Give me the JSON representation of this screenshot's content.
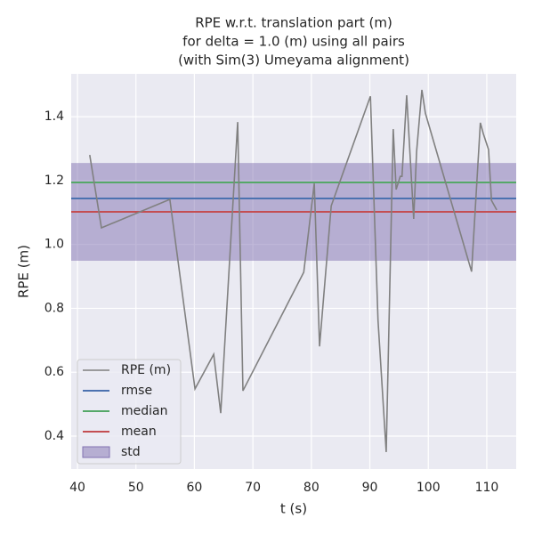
{
  "chart_data": {
    "type": "line",
    "title": [
      "RPE w.r.t. translation part (m)",
      "for delta = 1.0 (m) using all pairs",
      "(with Sim(3) Umeyama alignment)"
    ],
    "xlabel": "t (s)",
    "ylabel": "RPE (m)",
    "x": [
      42.1,
      44.1,
      55.8,
      60.1,
      63.3,
      64.5,
      67.4,
      68.3,
      78.7,
      80.5,
      81.4,
      83.4,
      90.1,
      91.4,
      92.8,
      94.0,
      94.5,
      95.2,
      95.5,
      96.3,
      97.5,
      98.0,
      98.9,
      99.5,
      107.4,
      108.9,
      109.4,
      110.3,
      110.8,
      111.7
    ],
    "series": [
      {
        "name": "RPE (m)",
        "color": "#808080",
        "values": [
          1.28,
          1.052,
          1.141,
          0.548,
          0.656,
          0.472,
          1.383,
          0.542,
          0.913,
          1.191,
          0.681,
          1.121,
          1.464,
          0.762,
          0.35,
          1.361,
          1.172,
          1.213,
          1.213,
          1.467,
          1.08,
          1.291,
          1.484,
          1.411,
          0.915,
          1.381,
          1.347,
          1.297,
          1.138,
          1.108
        ]
      }
    ],
    "stats": [
      {
        "name": "rmse",
        "color": "#4c72b0",
        "value": 1.144
      },
      {
        "name": "median",
        "color": "#55a868",
        "value": 1.194
      },
      {
        "name": "mean",
        "color": "#c44e52",
        "value": 1.102
      }
    ],
    "std": {
      "name": "std",
      "color": "#8172b2",
      "range": [
        0.949,
        1.255
      ]
    },
    "xlim": [
      38.93,
      115.03
    ],
    "ylim": [
      0.297,
      1.534
    ],
    "xticks": [
      40,
      50,
      60,
      70,
      80,
      90,
      100,
      110
    ],
    "yticks": [
      0.4,
      0.6,
      0.8,
      {
        "value": 1,
        "label": "1.0"
      },
      1.2,
      1.4
    ],
    "grid": true,
    "legend": "lower left"
  }
}
